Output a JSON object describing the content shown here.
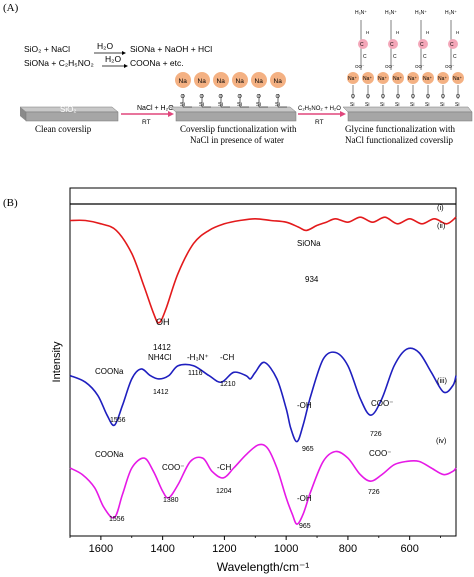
{
  "panel_a": {
    "label": "(A)",
    "reactions": {
      "line1_left": "SiO₂ + NaCl",
      "line1_solvent": "H₂O",
      "line1_right": "SiONa + NaOH + HCl",
      "line2_left": "SiONa + C₂H₅NO₂",
      "line2_solvent": "H₂O",
      "line2_right": "COONa + etc."
    },
    "slab_label": "SiO₂",
    "step1_arrow": "NaCl + H₂O",
    "step1_condition": "RT",
    "step2_arrow": "C₂H₅NO₂ + H₂O",
    "step2_condition": "RT",
    "caption_clean": "Clean coverslip",
    "caption_func_line1": "Coverslip functionalization with",
    "caption_func_line2": "NaCl in presence of water",
    "caption_gly_line1": "Glycine functionalization with",
    "caption_gly_line2": "NaCl functionalized coverslip",
    "atom_na": "Na",
    "atom_na_plus": "Na⁺",
    "atom_o": "O",
    "atom_si": "Si",
    "atom_c": "C",
    "atom_n": "N",
    "atom_h": "H",
    "atom_oo": "OO⁻",
    "atom_nh3": "H₃N⁺",
    "accent_na": "#f4b183",
    "accent_glycine": "#f4a7b9",
    "arrow_color": "#e0467c"
  },
  "panel_b": {
    "label": "(B)"
  },
  "chart_data": {
    "type": "line",
    "xlabel": "Wavelength/cm⁻¹",
    "ylabel": "Intensity",
    "xlim": [
      1700,
      450
    ],
    "x_ticks": [
      1600,
      1400,
      1200,
      1000,
      800,
      600
    ],
    "grid": false,
    "series": [
      {
        "name": "(i)",
        "color": "#000000",
        "offset": 1.0,
        "x": [
          1700,
          1400,
          1200,
          1000,
          800,
          600,
          450
        ],
        "y": [
          0,
          0,
          0,
          0,
          0,
          0,
          0
        ]
      },
      {
        "name": "(ii)",
        "color": "#e31a1c",
        "offset": 0.95,
        "x": [
          1700,
          1650,
          1600,
          1550,
          1500,
          1460,
          1430,
          1412,
          1390,
          1350,
          1300,
          1250,
          1200,
          1150,
          1100,
          1050,
          1000,
          960,
          934,
          900,
          870,
          840,
          800,
          760,
          720,
          680,
          640,
          600,
          560,
          520,
          480,
          450
        ],
        "y": [
          0,
          0,
          -0.01,
          -0.03,
          -0.1,
          -0.2,
          -0.28,
          -0.31,
          -0.27,
          -0.16,
          -0.07,
          -0.03,
          -0.01,
          0,
          0.005,
          0,
          -0.005,
          -0.02,
          -0.03,
          -0.015,
          -0.005,
          0.005,
          -0.005,
          0.01,
          -0.005,
          0.01,
          -0.01,
          0.005,
          -0.01,
          0.005,
          -0.01,
          0.01
        ]
      },
      {
        "name": "(iii)",
        "color": "#1f1fbf",
        "offset": 0.5,
        "x": [
          1700,
          1650,
          1610,
          1580,
          1556,
          1530,
          1500,
          1470,
          1440,
          1412,
          1380,
          1350,
          1300,
          1250,
          1210,
          1170,
          1130,
          1116,
          1100,
          1070,
          1030,
          1000,
          985,
          965,
          945,
          920,
          880,
          840,
          800,
          760,
          726,
          690,
          650,
          610,
          570,
          530,
          490,
          460,
          450
        ],
        "y": [
          -0.02,
          -0.04,
          -0.08,
          -0.14,
          -0.17,
          -0.11,
          -0.03,
          0.0,
          -0.02,
          -0.03,
          -0.02,
          0.01,
          0.01,
          -0.02,
          -0.04,
          -0.01,
          -0.02,
          -0.03,
          -0.01,
          0.02,
          -0.03,
          -0.12,
          -0.18,
          -0.22,
          -0.17,
          -0.08,
          0.03,
          0.05,
          0.01,
          -0.09,
          -0.14,
          -0.09,
          0.01,
          0.06,
          0.05,
          -0.01,
          -0.07,
          -0.05,
          -0.02
        ]
      },
      {
        "name": "(iv)",
        "color": "#e619e6",
        "offset": 0.22,
        "x": [
          1700,
          1660,
          1620,
          1590,
          1556,
          1530,
          1500,
          1460,
          1430,
          1400,
          1380,
          1350,
          1310,
          1270,
          1240,
          1204,
          1170,
          1130,
          1090,
          1060,
          1030,
          1000,
          980,
          965,
          945,
          920,
          880,
          840,
          800,
          760,
          726,
          690,
          650,
          610,
          570,
          530,
          490,
          460,
          450
        ],
        "y": [
          -0.02,
          -0.04,
          -0.08,
          -0.14,
          -0.17,
          -0.1,
          -0.02,
          0.01,
          -0.03,
          -0.09,
          -0.11,
          -0.07,
          0.0,
          0.01,
          -0.03,
          -0.05,
          -0.02,
          0.02,
          0.05,
          0.04,
          -0.02,
          -0.11,
          -0.16,
          -0.19,
          -0.16,
          -0.09,
          0.0,
          0.03,
          0.01,
          -0.04,
          -0.06,
          -0.04,
          -0.01,
          0.0,
          0.0,
          -0.02,
          -0.04,
          -0.03,
          -0.02
        ]
      }
    ],
    "annotations": [
      {
        "text": "SiONa",
        "peak": "934"
      },
      {
        "text": "OH",
        "peak": "1412"
      },
      {
        "text": "NH4Cl",
        "peak": "1412"
      },
      {
        "text": "-H₃N⁺",
        "peak": "1116"
      },
      {
        "text": "-CH",
        "peak": "1210"
      },
      {
        "text": "COONa",
        "peak": "1556"
      },
      {
        "text": "-OH",
        "peak": "965"
      },
      {
        "text": "COO⁻",
        "peak": "726"
      },
      {
        "text": "COONa",
        "peak": "1556"
      },
      {
        "text": "COO⁻",
        "peak": "1380"
      },
      {
        "text": "-CH",
        "peak": "1204"
      },
      {
        "text": "-OH",
        "peak": "965"
      },
      {
        "text": "COO⁻",
        "peak": "726"
      }
    ]
  }
}
